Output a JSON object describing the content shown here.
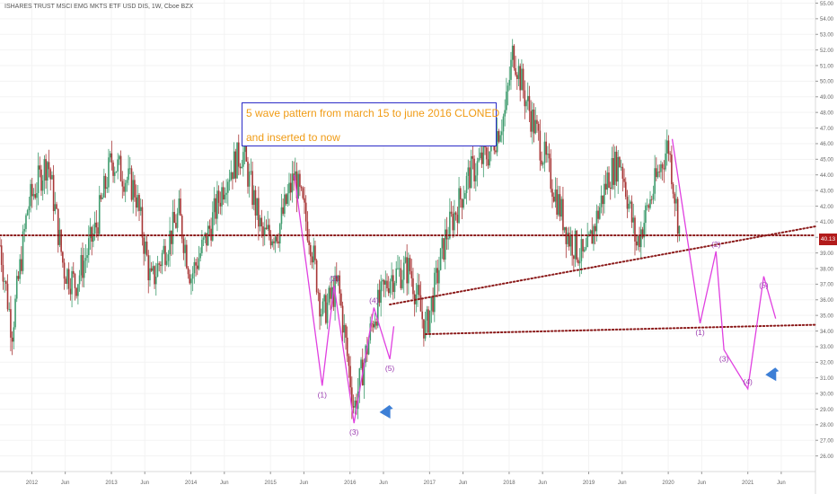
{
  "title": "ISHARES TRUST MSCI EMG MKTS ETF USD DIS, 1W, Cboe BZX",
  "annotation": {
    "line1": "5 wave pattern from march 15 to june 2016 CLONED",
    "line2": "and inserted to now"
  },
  "last_price": "40.13",
  "colors": {
    "up_candle": "#3e9b6d",
    "down_candle": "#a83636",
    "wave_line": "#e040e0",
    "wave_label": "#9b3bb0",
    "dotted_line": "#8b1a1a",
    "arrow": "#3d7fd6",
    "annotation_border": "#2c2cc8",
    "annotation_text": "#f09b14"
  },
  "chart_data": {
    "type": "candlestick",
    "x_axis": {
      "labels": [
        "2012",
        "Jun",
        "2013",
        "Jun",
        "2014",
        "Jun",
        "2015",
        "Jun",
        "2016",
        "Jun",
        "2017",
        "Jun",
        "2018",
        "Jun",
        "2019",
        "Jun",
        "2020",
        "Jun",
        "2021",
        "Jun"
      ],
      "range": [
        2011.6,
        2021.85
      ]
    },
    "y_axis": {
      "range": [
        25.0,
        55.2
      ],
      "ticks": [
        "26.00",
        "27.00",
        "28.00",
        "29.00",
        "30.00",
        "31.00",
        "32.00",
        "33.00",
        "34.00",
        "35.00",
        "36.00",
        "37.00",
        "38.00",
        "39.00",
        "40.00",
        "41.00",
        "42.00",
        "43.00",
        "44.00",
        "45.00",
        "46.00",
        "47.00",
        "48.00",
        "49.00",
        "50.00",
        "51.00",
        "52.00",
        "53.00",
        "54.00",
        "55.00"
      ]
    },
    "price_path": [
      [
        2011.6,
        39.5
      ],
      [
        2011.75,
        34.0
      ],
      [
        2011.95,
        42.0
      ],
      [
        2012.2,
        45.0
      ],
      [
        2012.4,
        38.0
      ],
      [
        2012.55,
        37.0
      ],
      [
        2012.8,
        40.5
      ],
      [
        2013.0,
        45.0
      ],
      [
        2013.3,
        43.0
      ],
      [
        2013.5,
        37.0
      ],
      [
        2013.65,
        39.0
      ],
      [
        2013.85,
        41.5
      ],
      [
        2014.0,
        37.5
      ],
      [
        2014.2,
        40.0
      ],
      [
        2014.45,
        44.0
      ],
      [
        2014.65,
        45.5
      ],
      [
        2014.9,
        40.0
      ],
      [
        2015.1,
        40.5
      ],
      [
        2015.3,
        44.0
      ],
      [
        2015.5,
        40.0
      ],
      [
        2015.65,
        35.0
      ],
      [
        2015.85,
        37.0
      ],
      [
        2016.05,
        29.0
      ],
      [
        2016.3,
        35.0
      ],
      [
        2016.5,
        37.5
      ],
      [
        2016.75,
        38.0
      ],
      [
        2016.95,
        34.0
      ],
      [
        2017.2,
        40.0
      ],
      [
        2017.5,
        44.0
      ],
      [
        2017.75,
        45.5
      ],
      [
        2017.95,
        48.0
      ],
      [
        2018.05,
        52.0
      ],
      [
        2018.2,
        49.0
      ],
      [
        2018.45,
        45.0
      ],
      [
        2018.75,
        40.0
      ],
      [
        2018.95,
        38.5
      ],
      [
        2019.25,
        44.0
      ],
      [
        2019.4,
        45.0
      ],
      [
        2019.6,
        39.5
      ],
      [
        2019.75,
        42.0
      ],
      [
        2019.9,
        44.5
      ],
      [
        2020.0,
        46.0
      ],
      [
        2020.1,
        42.0
      ],
      [
        2020.15,
        40.1
      ]
    ],
    "wave_patterns": [
      {
        "points": [
          [
            2015.3,
            44.0
          ],
          [
            2015.65,
            30.5
          ],
          [
            2015.8,
            36.9
          ],
          [
            2016.05,
            28.1
          ],
          [
            2016.3,
            35.5
          ],
          [
            2016.5,
            32.2
          ],
          [
            2016.55,
            34.3
          ]
        ],
        "labels": [
          "(1)",
          "(2)",
          "(3)",
          "(4)",
          "(5)"
        ]
      },
      {
        "points": [
          [
            2020.05,
            46.3
          ],
          [
            2020.4,
            34.5
          ],
          [
            2020.6,
            39.1
          ],
          [
            2020.7,
            32.8
          ],
          [
            2021.0,
            30.3
          ],
          [
            2021.2,
            37.5
          ],
          [
            2021.35,
            34.8
          ]
        ],
        "labels": [
          "(1)",
          "(2)",
          "(3)",
          "(4)",
          "(5)"
        ]
      }
    ],
    "trendlines": [
      {
        "from": [
          2011.6,
          40.13
        ],
        "to": [
          2021.85,
          40.13
        ],
        "note": "current price level"
      },
      {
        "from": [
          2016.5,
          35.7
        ],
        "to": [
          2021.85,
          40.7
        ]
      },
      {
        "from": [
          2016.95,
          33.8
        ],
        "to": [
          2021.85,
          34.4
        ]
      }
    ],
    "arrows": [
      {
        "at": [
          2016.45,
          28.8
        ],
        "direction": "left"
      },
      {
        "at": [
          2021.3,
          31.2
        ],
        "direction": "left"
      }
    ]
  }
}
